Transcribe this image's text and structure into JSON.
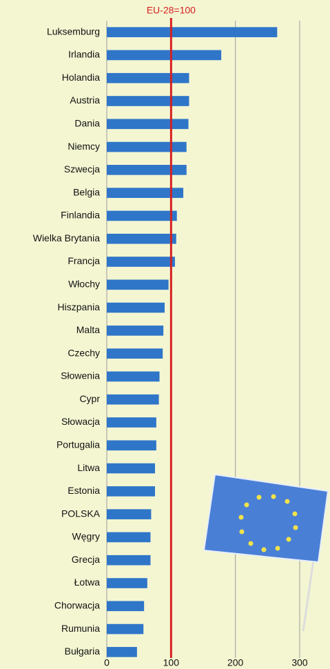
{
  "chart_data": {
    "type": "barh",
    "categories": [
      "Luksemburg",
      "Irlandia",
      "Holandia",
      "Austria",
      "Dania",
      "Niemcy",
      "Szwecja",
      "Belgia",
      "Finlandia",
      "Wielka Brytania",
      "Francja",
      "Włochy",
      "Hiszpania",
      "Malta",
      "Czechy",
      "Słowenia",
      "Cypr",
      "Słowacja",
      "Portugalia",
      "Litwa",
      "Estonia",
      "POLSKA",
      "Węgry",
      "Grecja",
      "Łotwa",
      "Chorwacja",
      "Rumunia",
      "Bułgaria"
    ],
    "values": [
      265,
      178,
      128,
      128,
      127,
      124,
      124,
      119,
      109,
      108,
      106,
      96,
      90,
      88,
      87,
      82,
      81,
      77,
      77,
      75,
      75,
      69,
      68,
      68,
      63,
      58,
      57,
      47
    ],
    "color": "#2f76c9",
    "xlim": [
      0,
      300
    ],
    "xticks": [
      0,
      100,
      200,
      300
    ],
    "grid": true,
    "reference": {
      "value": 100,
      "label": "EU-28=100",
      "color": "#d42020"
    }
  }
}
